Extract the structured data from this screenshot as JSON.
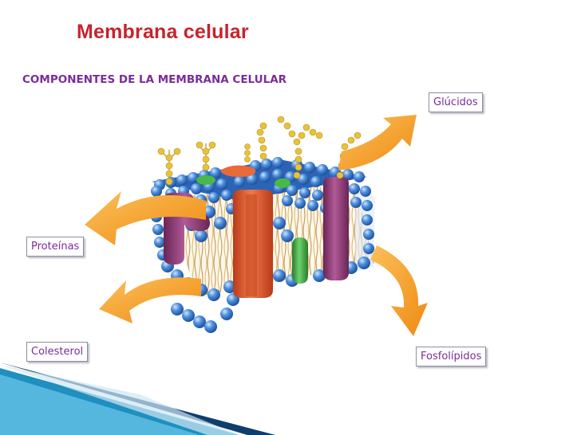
{
  "slide": {
    "title": "Membrana celular",
    "subtitle": "COMPONENTES DE LA MEMBRANA CELULAR"
  },
  "labels": {
    "glucidos": "Glúcidos",
    "proteinas": "Proteínas",
    "colesterol": "Colesterol",
    "fosfolipidos": "Fosfolípidos"
  },
  "colors": {
    "title": "#c8232c",
    "text": "#7a2c9a",
    "arrow": "#f39a1e",
    "phospholipid_head": "#3f7fd0",
    "protein_orange": "#e0562a",
    "protein_purple": "#8a3c74",
    "cholesterol_green": "#45a845",
    "glycan_yellow": "#e8c23a",
    "corner_band": "#1f8fc0"
  }
}
